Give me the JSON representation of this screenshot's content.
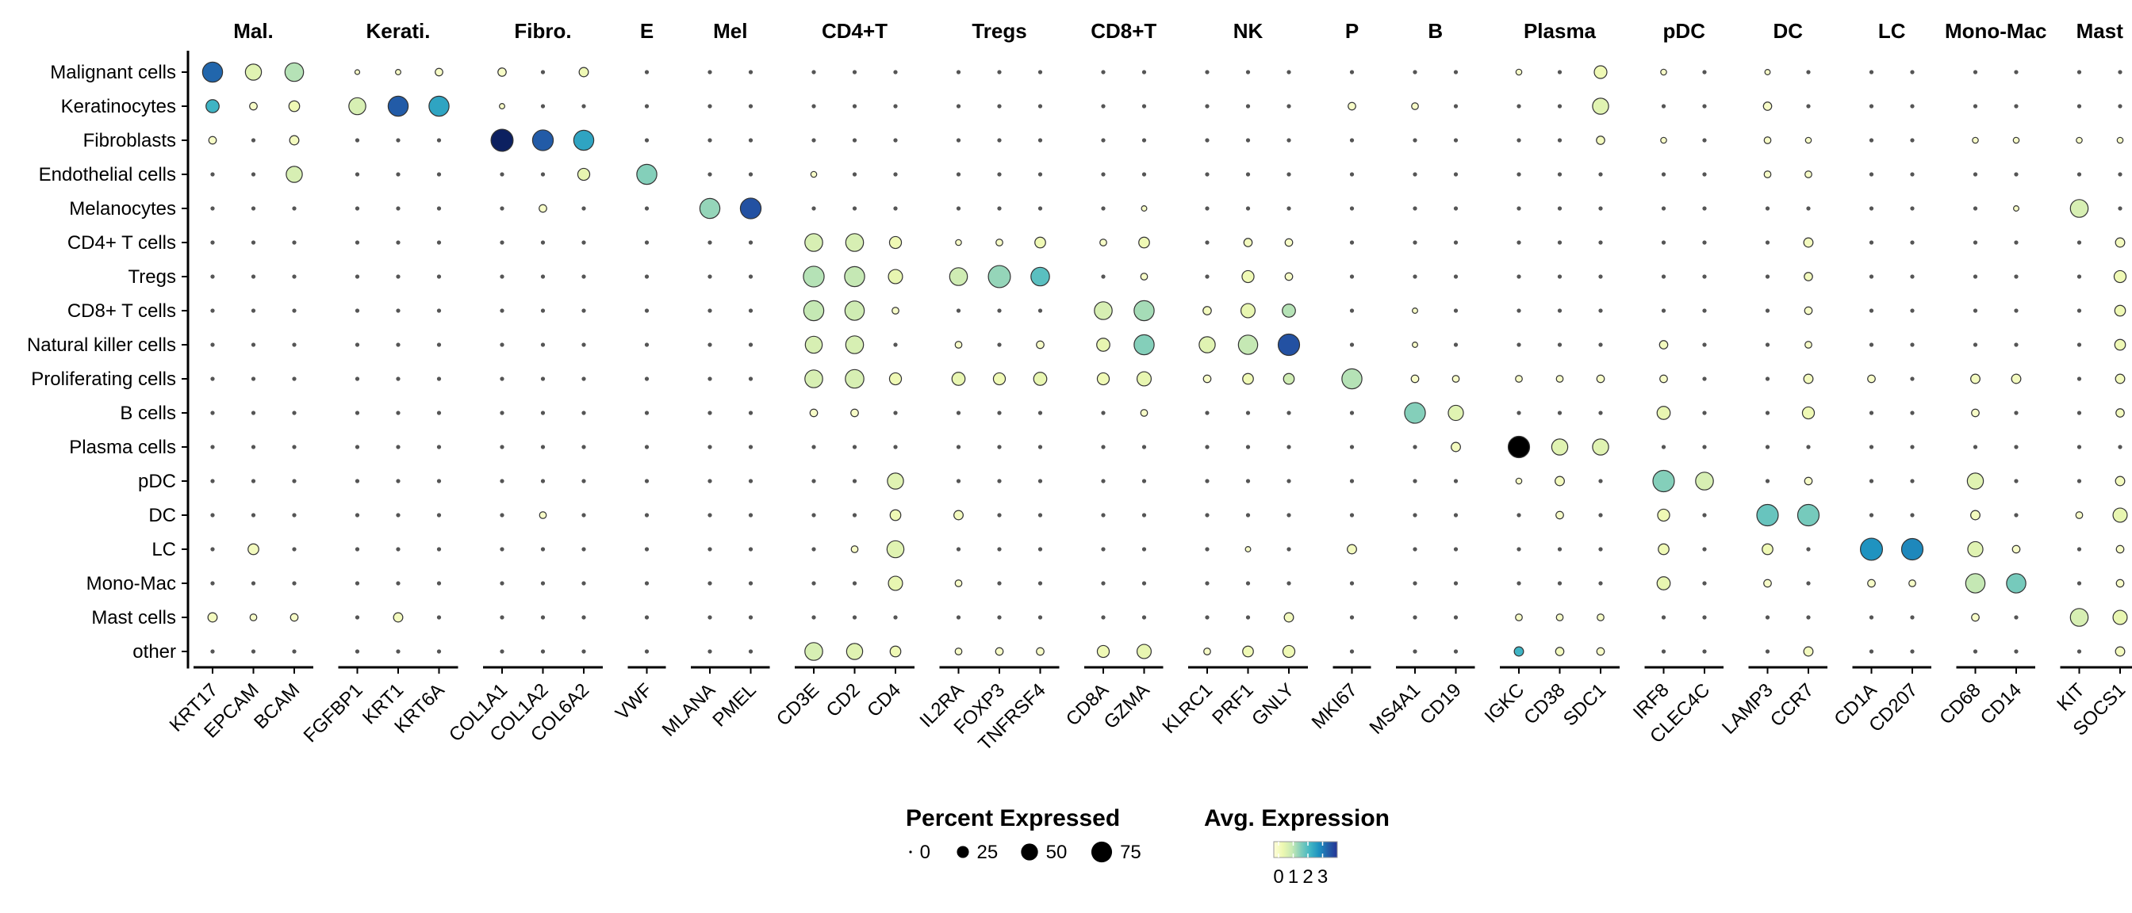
{
  "chart_data": {
    "type": "dotplot",
    "cell_types": [
      "Malignant cells",
      "Keratinocytes",
      "Fibroblasts",
      "Endothelial cells",
      "Melanocytes",
      "CD4+ T cells",
      "Tregs",
      "CD8+ T cells",
      "Natural killer cells",
      "Proliferating cells",
      "B cells",
      "Plasma cells",
      "pDC",
      "DC",
      "LC",
      "Mono-Mac",
      "Mast cells",
      "other"
    ],
    "groups": [
      {
        "name": "Mal.",
        "genes": [
          "KRT17",
          "EPCAM",
          "BCAM"
        ]
      },
      {
        "name": "Kerati.",
        "genes": [
          "FGFBP1",
          "KRT1",
          "KRT6A"
        ]
      },
      {
        "name": "Fibro.",
        "genes": [
          "COL1A1",
          "COL1A2",
          "COL6A2"
        ]
      },
      {
        "name": "E",
        "genes": [
          "VWF"
        ]
      },
      {
        "name": "Mel",
        "genes": [
          "MLANA",
          "PMEL"
        ]
      },
      {
        "name": "CD4+T",
        "genes": [
          "CD3E",
          "CD2",
          "CD4"
        ]
      },
      {
        "name": "Tregs",
        "genes": [
          "IL2RA",
          "FOXP3",
          "TNFRSF4"
        ]
      },
      {
        "name": "CD8+T",
        "genes": [
          "CD8A",
          "GZMA"
        ]
      },
      {
        "name": "NK",
        "genes": [
          "KLRC1",
          "PRF1",
          "GNLY"
        ]
      },
      {
        "name": "P",
        "genes": [
          "MKI67"
        ]
      },
      {
        "name": "B",
        "genes": [
          "MS4A1",
          "CD19"
        ]
      },
      {
        "name": "Plasma",
        "genes": [
          "IGKC",
          "CD38",
          "SDC1"
        ]
      },
      {
        "name": "pDC",
        "genes": [
          "IRF8",
          "CLEC4C"
        ]
      },
      {
        "name": "DC",
        "genes": [
          "LAMP3",
          "CCR7"
        ]
      },
      {
        "name": "LC",
        "genes": [
          "CD1A",
          "CD207"
        ]
      },
      {
        "name": "Mono-Mac",
        "genes": [
          "CD68",
          "CD14"
        ]
      },
      {
        "name": "Mast",
        "genes": [
          "KIT",
          "SOCS1"
        ]
      }
    ],
    "default_dot": {
      "pct": 3,
      "avg": 0.05
    },
    "highlights": {
      "Malignant cells": {
        "KRT17": [
          70,
          2.6
        ],
        "EPCAM": [
          45,
          0.6
        ],
        "BCAM": [
          60,
          1.0
        ],
        "FGFBP1": [
          4,
          0.2
        ],
        "KRT1": [
          5,
          0.2
        ],
        "KRT6A": [
          10,
          0.2
        ],
        "COL1A1": [
          12,
          0.2
        ],
        "COL6A2": [
          15,
          0.4
        ],
        "IGKC": [
          6,
          0.2
        ],
        "SDC1": [
          28,
          0.4
        ],
        "IRF8": [
          6,
          0.2
        ],
        "LAMP3": [
          5,
          0.2
        ]
      },
      "Keratinocytes": {
        "KRT17": [
          30,
          1.8
        ],
        "EPCAM": [
          10,
          0.2
        ],
        "BCAM": [
          20,
          0.4
        ],
        "FGFBP1": [
          50,
          0.7
        ],
        "KRT1": [
          70,
          2.7
        ],
        "KRT6A": [
          70,
          2.0
        ],
        "COL1A1": [
          5,
          0.2
        ],
        "SDC1": [
          45,
          0.6
        ],
        "LAMP3": [
          12,
          0.2
        ],
        "MS4A1": [
          8,
          0.2
        ],
        "MKI67": [
          10,
          0.2
        ]
      },
      "Fibroblasts": {
        "KRT17": [
          10,
          0.2
        ],
        "BCAM": [
          15,
          0.3
        ],
        "COL1A1": [
          85,
          3.5
        ],
        "COL1A2": [
          75,
          2.7
        ],
        "COL6A2": [
          70,
          2.0
        ],
        "SDC1": [
          12,
          0.3
        ],
        "IRF8": [
          6,
          0.2
        ],
        "LAMP3": [
          8,
          0.2
        ],
        "CCR7": [
          6,
          0.2
        ],
        "CD68": [
          6,
          0.2
        ],
        "CD14": [
          6,
          0.2
        ],
        "KIT": [
          6,
          0.2
        ],
        "SOCS1": [
          6,
          0.2
        ]
      },
      "Endothelial cells": {
        "BCAM": [
          45,
          0.7
        ],
        "COL6A2": [
          25,
          0.5
        ],
        "VWF": [
          70,
          1.3
        ],
        "CD3E": [
          6,
          0.2
        ],
        "LAMP3": [
          8,
          0.2
        ],
        "CCR7": [
          8,
          0.2
        ]
      },
      "Melanocytes": {
        "MLANA": [
          70,
          1.2
        ],
        "PMEL": [
          75,
          2.8
        ],
        "COL1A2": [
          10,
          0.2
        ],
        "GZMA": [
          5,
          0.2
        ],
        "KIT": [
          55,
          0.7
        ],
        "CD14": [
          5,
          0.2
        ]
      },
      "CD4+ T cells": {
        "CD3E": [
          55,
          0.7
        ],
        "CD2": [
          55,
          0.7
        ],
        "CD4": [
          25,
          0.4
        ],
        "IL2RA": [
          6,
          0.2
        ],
        "FOXP3": [
          8,
          0.2
        ],
        "TNFRSF4": [
          20,
          0.4
        ],
        "CD8A": [
          8,
          0.2
        ],
        "GZMA": [
          20,
          0.4
        ],
        "PRF1": [
          12,
          0.3
        ],
        "GNLY": [
          10,
          0.2
        ],
        "CCR7": [
          15,
          0.3
        ],
        "SOCS1": [
          15,
          0.3
        ]
      },
      "Tregs": {
        "CD3E": [
          75,
          1.0
        ],
        "CD2": [
          70,
          0.9
        ],
        "CD4": [
          35,
          0.5
        ],
        "IL2RA": [
          55,
          0.8
        ],
        "FOXP3": [
          85,
          1.2
        ],
        "TNFRSF4": [
          60,
          1.6
        ],
        "GZMA": [
          8,
          0.2
        ],
        "PRF1": [
          25,
          0.4
        ],
        "GNLY": [
          10,
          0.2
        ],
        "CCR7": [
          12,
          0.3
        ],
        "SOCS1": [
          25,
          0.4
        ]
      },
      "CD8+ T cells": {
        "CD3E": [
          70,
          0.9
        ],
        "CD2": [
          65,
          0.8
        ],
        "CD4": [
          8,
          0.2
        ],
        "CD8A": [
          55,
          0.7
        ],
        "GZMA": [
          70,
          1.1
        ],
        "KLRC1": [
          12,
          0.3
        ],
        "PRF1": [
          35,
          0.5
        ],
        "GNLY": [
          30,
          1.0
        ],
        "MS4A1": [
          5,
          0.2
        ],
        "CCR7": [
          10,
          0.2
        ],
        "SOCS1": [
          20,
          0.4
        ]
      },
      "Natural killer cells": {
        "CD3E": [
          50,
          0.7
        ],
        "CD2": [
          55,
          0.7
        ],
        "IL2RA": [
          8,
          0.2
        ],
        "TNFRSF4": [
          10,
          0.2
        ],
        "CD8A": [
          30,
          0.5
        ],
        "GZMA": [
          70,
          1.3
        ],
        "KLRC1": [
          45,
          0.6
        ],
        "PRF1": [
          65,
          0.9
        ],
        "GNLY": [
          80,
          2.8
        ],
        "MS4A1": [
          5,
          0.2
        ],
        "IRF8": [
          12,
          0.3
        ],
        "CCR7": [
          8,
          0.2
        ],
        "SOCS1": [
          20,
          0.4
        ]
      },
      "Proliferating cells": {
        "CD3E": [
          55,
          0.7
        ],
        "CD2": [
          60,
          0.7
        ],
        "CD4": [
          25,
          0.4
        ],
        "IL2RA": [
          30,
          0.5
        ],
        "FOXP3": [
          25,
          0.4
        ],
        "TNFRSF4": [
          30,
          0.5
        ],
        "CD8A": [
          25,
          0.4
        ],
        "GZMA": [
          35,
          0.5
        ],
        "KLRC1": [
          10,
          0.2
        ],
        "PRF1": [
          20,
          0.4
        ],
        "GNLY": [
          20,
          0.8
        ],
        "MKI67": [
          70,
          1.0
        ],
        "MS4A1": [
          10,
          0.2
        ],
        "CD19": [
          8,
          0.2
        ],
        "IGKC": [
          8,
          0.2
        ],
        "CD38": [
          8,
          0.2
        ],
        "SDC1": [
          10,
          0.2
        ],
        "IRF8": [
          10,
          0.2
        ],
        "CCR7": [
          15,
          0.3
        ],
        "CD1A": [
          10,
          0.2
        ],
        "CD68": [
          15,
          0.3
        ],
        "CD14": [
          15,
          0.3
        ],
        "SOCS1": [
          15,
          0.3
        ]
      },
      "B cells": {
        "CD3E": [
          10,
          0.2
        ],
        "CD2": [
          10,
          0.2
        ],
        "GZMA": [
          8,
          0.2
        ],
        "MS4A1": [
          75,
          1.3
        ],
        "CD19": [
          40,
          0.6
        ],
        "IRF8": [
          30,
          0.5
        ],
        "CCR7": [
          25,
          0.4
        ],
        "CD68": [
          10,
          0.2
        ],
        "SOCS1": [
          12,
          0.3
        ]
      },
      "Plasma cells": {
        "CD19": [
          15,
          0.3
        ],
        "IGKC": [
          80,
          4.0
        ],
        "CD38": [
          45,
          0.6
        ],
        "SDC1": [
          45,
          0.6
        ]
      },
      "pDC": {
        "CD4": [
          45,
          0.6
        ],
        "IGKC": [
          6,
          0.2
        ],
        "CD38": [
          15,
          0.3
        ],
        "IRF8": [
          80,
          1.3
        ],
        "CLEC4C": [
          55,
          0.7
        ],
        "CCR7": [
          10,
          0.2
        ],
        "CD68": [
          45,
          0.6
        ],
        "SOCS1": [
          15,
          0.3
        ]
      },
      "DC": {
        "CD4": [
          20,
          0.4
        ],
        "IL2RA": [
          15,
          0.3
        ],
        "COL1A2": [
          8,
          0.2
        ],
        "CD38": [
          10,
          0.2
        ],
        "IRF8": [
          25,
          0.4
        ],
        "LAMP3": [
          80,
          1.5
        ],
        "CCR7": [
          80,
          1.4
        ],
        "CD68": [
          15,
          0.3
        ],
        "KIT": [
          8,
          0.2
        ],
        "SOCS1": [
          35,
          0.5
        ]
      },
      "LC": {
        "EPCAM": [
          20,
          0.3
        ],
        "CD2": [
          8,
          0.2
        ],
        "CD4": [
          50,
          0.6
        ],
        "PRF1": [
          5,
          0.2
        ],
        "MKI67": [
          15,
          0.3
        ],
        "IRF8": [
          20,
          0.4
        ],
        "LAMP3": [
          20,
          0.4
        ],
        "CD1A": [
          85,
          2.2
        ],
        "CD207": [
          80,
          2.3
        ],
        "CD68": [
          40,
          0.6
        ],
        "CD14": [
          10,
          0.2
        ],
        "SOCS1": [
          10,
          0.2
        ]
      },
      "Mono-Mac": {
        "CD4": [
          35,
          0.5
        ],
        "IL2RA": [
          8,
          0.2
        ],
        "IRF8": [
          30,
          0.5
        ],
        "LAMP3": [
          10,
          0.2
        ],
        "CD1A": [
          10,
          0.2
        ],
        "CD207": [
          8,
          0.2
        ],
        "CD68": [
          65,
          0.9
        ],
        "CD14": [
          65,
          1.4
        ],
        "SOCS1": [
          10,
          0.2
        ]
      },
      "Mast cells": {
        "KRT17": [
          15,
          0.3
        ],
        "EPCAM": [
          8,
          0.2
        ],
        "BCAM": [
          10,
          0.2
        ],
        "KRT1": [
          15,
          0.3
        ],
        "GNLY": [
          15,
          0.3
        ],
        "IGKC": [
          8,
          0.2
        ],
        "CD38": [
          8,
          0.2
        ],
        "SDC1": [
          8,
          0.2
        ],
        "CD68": [
          10,
          0.2
        ],
        "KIT": [
          55,
          0.7
        ],
        "SOCS1": [
          35,
          0.5
        ]
      },
      "other": {
        "CD3E": [
          55,
          0.7
        ],
        "CD2": [
          45,
          0.6
        ],
        "CD4": [
          20,
          0.4
        ],
        "IL2RA": [
          8,
          0.2
        ],
        "FOXP3": [
          10,
          0.2
        ],
        "TNFRSF4": [
          10,
          0.2
        ],
        "CD8A": [
          25,
          0.4
        ],
        "GZMA": [
          35,
          0.5
        ],
        "KLRC1": [
          8,
          0.2
        ],
        "PRF1": [
          20,
          0.4
        ],
        "GNLY": [
          25,
          0.4
        ],
        "IGKC": [
          15,
          1.8
        ],
        "CD38": [
          12,
          0.3
        ],
        "SDC1": [
          10,
          0.2
        ],
        "CCR7": [
          15,
          0.3
        ],
        "SOCS1": [
          15,
          0.3
        ]
      }
    },
    "size_legend": {
      "title": "Percent Expressed",
      "breaks": [
        0,
        25,
        50,
        75
      ],
      "labels": [
        "0",
        "25",
        "50",
        "75"
      ]
    },
    "color_legend": {
      "title": "Avg. Expression",
      "breaks": [
        0,
        1,
        2,
        3
      ],
      "labels": [
        "0",
        "1",
        "2",
        "3"
      ],
      "colors": [
        "#ffffd9",
        "#edf8b1",
        "#c7e9b4",
        "#7fcdbb",
        "#41b6c4",
        "#1d91c0",
        "#225ea8",
        "#253494",
        "#081d58",
        "#000000"
      ]
    }
  }
}
